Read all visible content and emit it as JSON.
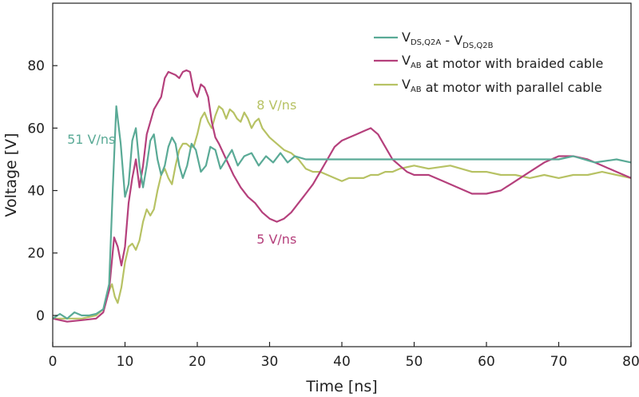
{
  "chart_data": {
    "type": "line",
    "title": "",
    "xlabel": "Time [ns]",
    "ylabel": "Voltage [V]",
    "xlim": [
      0,
      80
    ],
    "ylim": [
      -10,
      100
    ],
    "xticks": [
      0,
      10,
      20,
      30,
      40,
      50,
      60,
      70,
      80
    ],
    "yticks": [
      0,
      20,
      40,
      60,
      80
    ],
    "grid": false,
    "legend_position": "top-right",
    "series": [
      {
        "name": "V_DS,Q2A - V_DS,Q2B",
        "legend_main": [
          "V",
          " - V"
        ],
        "legend_subs": [
          "DS,Q2A",
          "DS,Q2B"
        ],
        "color": "#5aaa96",
        "points": [
          [
            0,
            -1
          ],
          [
            1,
            0.5
          ],
          [
            2,
            -1
          ],
          [
            3,
            1
          ],
          [
            4,
            0
          ],
          [
            5,
            0
          ],
          [
            6,
            0.5
          ],
          [
            7,
            2
          ],
          [
            7.8,
            10
          ],
          [
            8.3,
            40
          ],
          [
            8.8,
            67
          ],
          [
            9.4,
            55
          ],
          [
            10,
            38
          ],
          [
            10.5,
            42
          ],
          [
            11,
            56
          ],
          [
            11.5,
            60
          ],
          [
            12,
            48
          ],
          [
            12.5,
            41
          ],
          [
            13,
            48
          ],
          [
            13.5,
            56
          ],
          [
            14,
            58
          ],
          [
            14.5,
            50
          ],
          [
            15,
            45
          ],
          [
            15.5,
            48
          ],
          [
            16,
            54
          ],
          [
            16.5,
            57
          ],
          [
            17,
            55
          ],
          [
            17.5,
            48
          ],
          [
            18,
            44
          ],
          [
            18.6,
            48
          ],
          [
            19.2,
            55
          ],
          [
            19.8,
            53
          ],
          [
            20.5,
            46
          ],
          [
            21.2,
            48
          ],
          [
            21.8,
            54
          ],
          [
            22.5,
            53
          ],
          [
            23.2,
            47
          ],
          [
            24,
            50
          ],
          [
            24.8,
            53
          ],
          [
            25.6,
            48
          ],
          [
            26.5,
            51
          ],
          [
            27.5,
            52
          ],
          [
            28.5,
            48
          ],
          [
            29.5,
            51
          ],
          [
            30.5,
            49
          ],
          [
            31.5,
            52
          ],
          [
            32.5,
            49
          ],
          [
            33.5,
            51
          ],
          [
            35,
            50
          ],
          [
            37,
            50
          ],
          [
            39,
            50
          ],
          [
            41,
            50
          ],
          [
            43,
            50
          ],
          [
            46,
            50
          ],
          [
            50,
            50
          ],
          [
            55,
            50
          ],
          [
            60,
            50
          ],
          [
            65,
            50
          ],
          [
            70,
            50
          ],
          [
            72,
            51
          ],
          [
            75,
            49
          ],
          [
            78,
            50
          ],
          [
            80,
            49
          ]
        ]
      },
      {
        "name": "V_AB at motor with braided cable",
        "legend_main": [
          "V",
          " at motor with braided cable"
        ],
        "legend_subs": [
          "AB"
        ],
        "color": "#b5407c",
        "points": [
          [
            0,
            -1
          ],
          [
            2,
            -2
          ],
          [
            4,
            -1.5
          ],
          [
            6,
            -1
          ],
          [
            7,
            1
          ],
          [
            7.8,
            8
          ],
          [
            8.5,
            25
          ],
          [
            9,
            22
          ],
          [
            9.5,
            16
          ],
          [
            10,
            22
          ],
          [
            10.5,
            36
          ],
          [
            11,
            44
          ],
          [
            11.5,
            50
          ],
          [
            12,
            41
          ],
          [
            12.5,
            48
          ],
          [
            13,
            58
          ],
          [
            14,
            66
          ],
          [
            15,
            70
          ],
          [
            15.5,
            76
          ],
          [
            16,
            78
          ],
          [
            17,
            77
          ],
          [
            17.5,
            76
          ],
          [
            18,
            78
          ],
          [
            18.5,
            78.5
          ],
          [
            19,
            78
          ],
          [
            19.5,
            72
          ],
          [
            20,
            70
          ],
          [
            20.5,
            74
          ],
          [
            21,
            73
          ],
          [
            21.5,
            70
          ],
          [
            22,
            62
          ],
          [
            22.5,
            57
          ],
          [
            23,
            55
          ],
          [
            24,
            50
          ],
          [
            25,
            45
          ],
          [
            26,
            41
          ],
          [
            27,
            38
          ],
          [
            28,
            36
          ],
          [
            29,
            33
          ],
          [
            30,
            31
          ],
          [
            31,
            30
          ],
          [
            32,
            31
          ],
          [
            33,
            33
          ],
          [
            34,
            36
          ],
          [
            35,
            39
          ],
          [
            36,
            42
          ],
          [
            37,
            46
          ],
          [
            38,
            50
          ],
          [
            39,
            54
          ],
          [
            40,
            56
          ],
          [
            41,
            57
          ],
          [
            42,
            58
          ],
          [
            43,
            59
          ],
          [
            44,
            60
          ],
          [
            45,
            58
          ],
          [
            46,
            54
          ],
          [
            47,
            50
          ],
          [
            48,
            48
          ],
          [
            49,
            46
          ],
          [
            50,
            45
          ],
          [
            52,
            45
          ],
          [
            54,
            43
          ],
          [
            56,
            41
          ],
          [
            58,
            39
          ],
          [
            60,
            39
          ],
          [
            62,
            40
          ],
          [
            64,
            43
          ],
          [
            66,
            46
          ],
          [
            68,
            49
          ],
          [
            70,
            51
          ],
          [
            72,
            51
          ],
          [
            74,
            50
          ],
          [
            76,
            48
          ],
          [
            78,
            46
          ],
          [
            80,
            44
          ]
        ]
      },
      {
        "name": "V_AB at motor with parallel cable",
        "legend_main": [
          "V",
          " at motor with parallel cable"
        ],
        "legend_subs": [
          "AB"
        ],
        "color": "#b7c264",
        "points": [
          [
            0,
            -1
          ],
          [
            2,
            -1
          ],
          [
            4,
            -1
          ],
          [
            6,
            0
          ],
          [
            7,
            2
          ],
          [
            7.8,
            8
          ],
          [
            8.2,
            10
          ],
          [
            8.6,
            6
          ],
          [
            9,
            4
          ],
          [
            9.5,
            9
          ],
          [
            10,
            17
          ],
          [
            10.5,
            22
          ],
          [
            11,
            23
          ],
          [
            11.5,
            21
          ],
          [
            12,
            24
          ],
          [
            12.5,
            30
          ],
          [
            13,
            34
          ],
          [
            13.5,
            32
          ],
          [
            14,
            34
          ],
          [
            14.5,
            40
          ],
          [
            15,
            45
          ],
          [
            15.5,
            47
          ],
          [
            16,
            44
          ],
          [
            16.5,
            42
          ],
          [
            17,
            48
          ],
          [
            17.5,
            53
          ],
          [
            18,
            55
          ],
          [
            18.5,
            55
          ],
          [
            19,
            54
          ],
          [
            19.5,
            54
          ],
          [
            20,
            58
          ],
          [
            20.5,
            63
          ],
          [
            21,
            65
          ],
          [
            21.5,
            62
          ],
          [
            22,
            60
          ],
          [
            22.5,
            64
          ],
          [
            23,
            67
          ],
          [
            23.5,
            66
          ],
          [
            24,
            63
          ],
          [
            24.5,
            66
          ],
          [
            25,
            65
          ],
          [
            25.5,
            63
          ],
          [
            26,
            62
          ],
          [
            26.5,
            65
          ],
          [
            27,
            63
          ],
          [
            27.5,
            60
          ],
          [
            28,
            62
          ],
          [
            28.5,
            63
          ],
          [
            29,
            60
          ],
          [
            30,
            57
          ],
          [
            31,
            55
          ],
          [
            32,
            53
          ],
          [
            33,
            52
          ],
          [
            34,
            50
          ],
          [
            35,
            47
          ],
          [
            36,
            46
          ],
          [
            37,
            46
          ],
          [
            38,
            45
          ],
          [
            39,
            44
          ],
          [
            40,
            43
          ],
          [
            41,
            44
          ],
          [
            42,
            44
          ],
          [
            43,
            44
          ],
          [
            44,
            45
          ],
          [
            45,
            45
          ],
          [
            46,
            46
          ],
          [
            47,
            46
          ],
          [
            48,
            47
          ],
          [
            50,
            48
          ],
          [
            52,
            47
          ],
          [
            55,
            48
          ],
          [
            58,
            46
          ],
          [
            60,
            46
          ],
          [
            62,
            45
          ],
          [
            64,
            45
          ],
          [
            66,
            44
          ],
          [
            68,
            45
          ],
          [
            70,
            44
          ],
          [
            72,
            45
          ],
          [
            74,
            45
          ],
          [
            76,
            46
          ],
          [
            78,
            45
          ],
          [
            80,
            44
          ]
        ]
      }
    ],
    "annotations": [
      {
        "text": "51 V/ns",
        "x": 2,
        "y": 55,
        "color": "#5aaa96"
      },
      {
        "text": "8 V/ns",
        "x": 28.2,
        "y": 66,
        "color": "#b7c264"
      },
      {
        "text": "5 V/ns",
        "x": 28.2,
        "y": 23,
        "color": "#b5407c"
      }
    ]
  }
}
